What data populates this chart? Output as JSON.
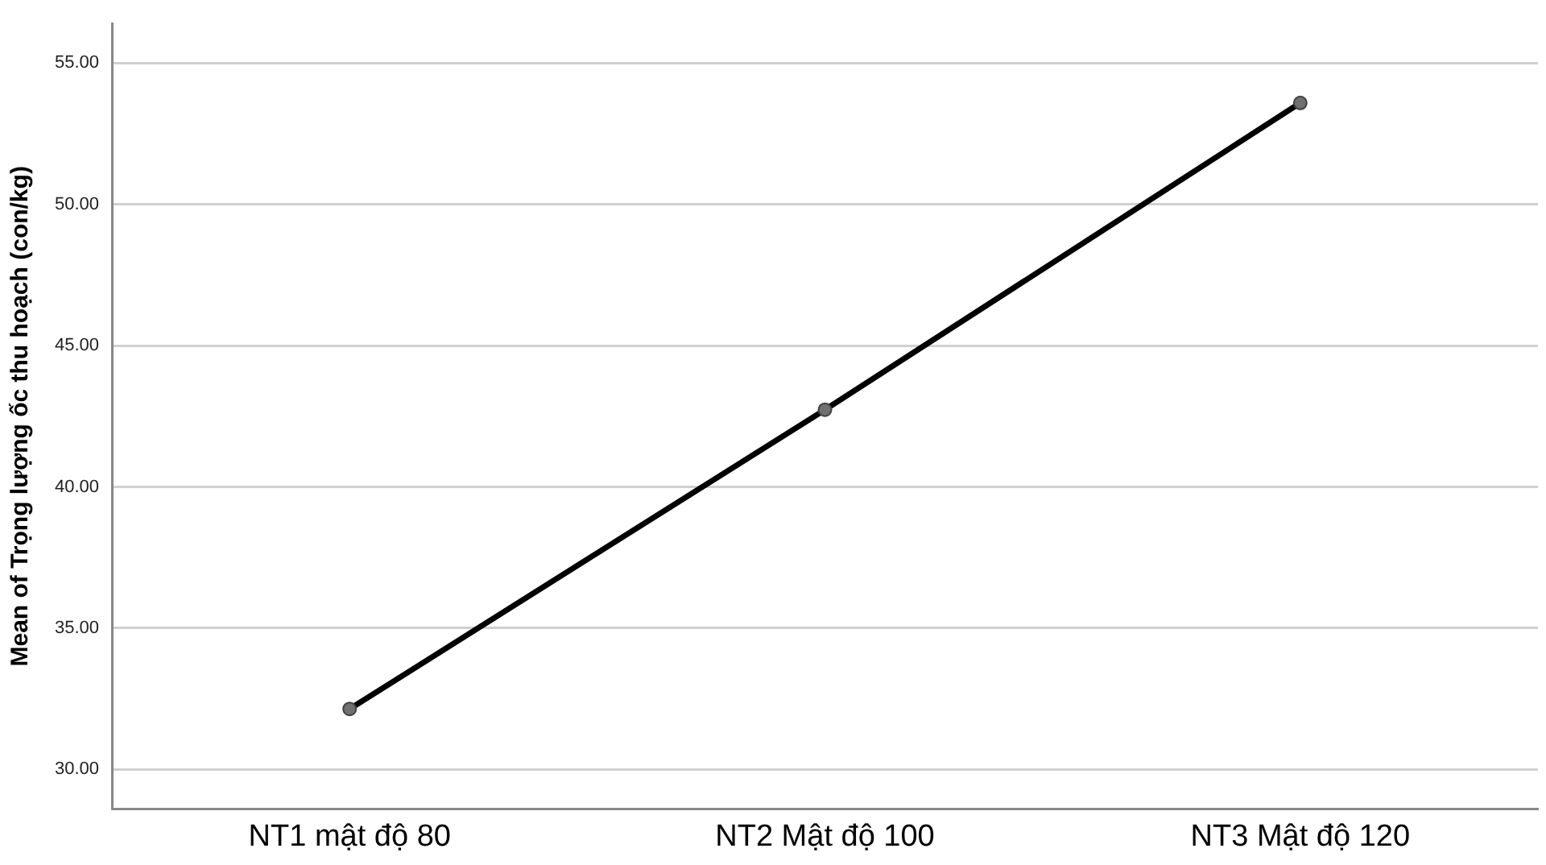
{
  "chart_data": {
    "type": "line",
    "ylabel": "Mean of Trọng lượng ốc thu hoạch (con/kg)",
    "categories": [
      "NT1 mật độ 80",
      "NT2 Mật độ 100",
      "NT3 Mật độ 120"
    ],
    "series": [
      {
        "color": "#000000",
        "values": [
          32.14,
          42.73,
          53.59
        ]
      }
    ],
    "ylim": [
      28.6,
      56.4
    ],
    "yticks": [
      {
        "value": 30,
        "label": "30.00"
      },
      {
        "value": 35,
        "label": "35.00"
      },
      {
        "value": 40,
        "label": "40.00"
      },
      {
        "value": 45,
        "label": "45.00"
      },
      {
        "value": 50,
        "label": "50.00"
      },
      {
        "value": 55,
        "label": "55.00"
      }
    ],
    "grid": "y",
    "marker": "circle",
    "line_style": "solid",
    "legend": false
  }
}
